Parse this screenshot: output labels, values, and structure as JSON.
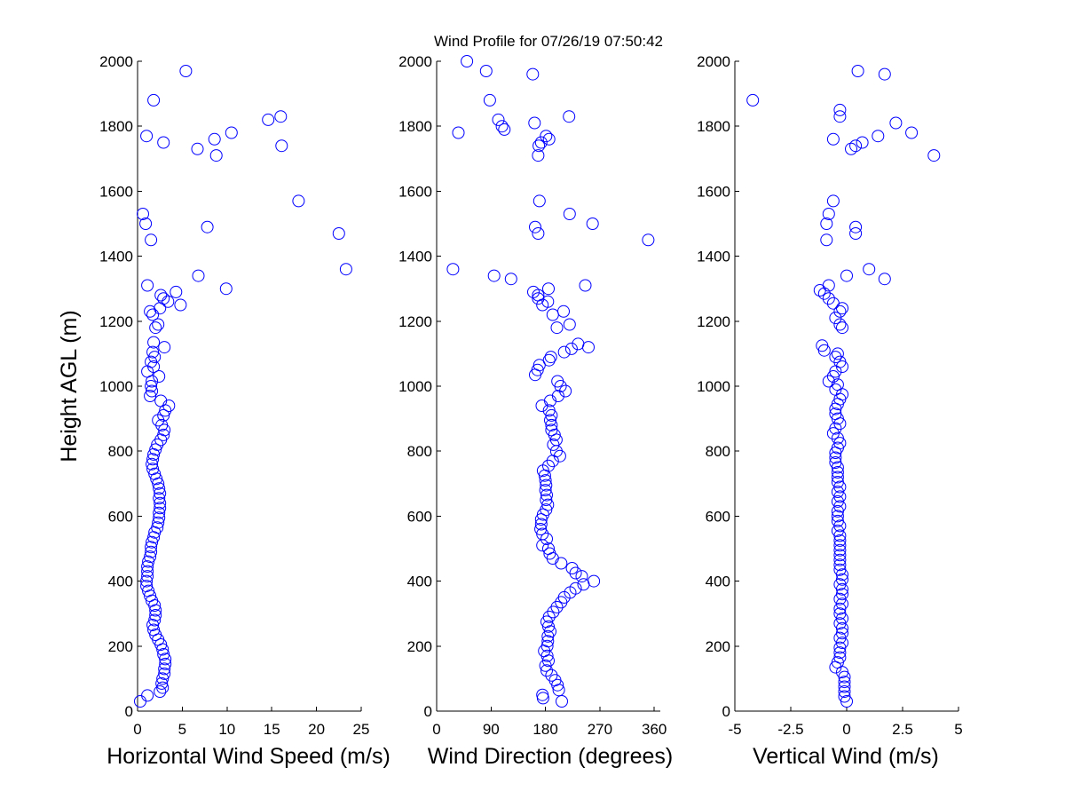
{
  "figure": {
    "title": "Wind Profile for  07/26/19 07:50:42",
    "marker_color": "#0000ff",
    "marker": "open-circle"
  },
  "chart_data": [
    {
      "type": "scatter",
      "xlabel": "Horizontal Wind Speed (m/s)",
      "ylabel": "Height AGL (m)",
      "xlim": [
        0,
        25
      ],
      "ylim": [
        0,
        2000
      ],
      "xticks": [
        0,
        5,
        10,
        15,
        20,
        25
      ],
      "yticks": [
        0,
        200,
        400,
        600,
        800,
        1000,
        1200,
        1400,
        1600,
        1800,
        2000
      ],
      "x_tick_labels": [
        "0",
        "5",
        "10",
        "15",
        "20",
        "25"
      ],
      "y_tick_labels": [
        "0",
        "200",
        "400",
        "600",
        "800",
        "1000",
        "1200",
        "1400",
        "1600",
        "1800",
        "2000"
      ],
      "points": [
        [
          0.3,
          30
        ],
        [
          1.1,
          48
        ],
        [
          2.5,
          60
        ],
        [
          2.8,
          72
        ],
        [
          2.7,
          85
        ],
        [
          2.8,
          100
        ],
        [
          3.0,
          115
        ],
        [
          3.0,
          130
        ],
        [
          3.1,
          145
        ],
        [
          3.1,
          160
        ],
        [
          2.9,
          175
        ],
        [
          2.8,
          190
        ],
        [
          2.6,
          205
        ],
        [
          2.3,
          220
        ],
        [
          2.0,
          235
        ],
        [
          1.8,
          250
        ],
        [
          1.7,
          265
        ],
        [
          1.9,
          280
        ],
        [
          2.0,
          295
        ],
        [
          2.0,
          310
        ],
        [
          1.9,
          325
        ],
        [
          1.6,
          340
        ],
        [
          1.4,
          355
        ],
        [
          1.2,
          370
        ],
        [
          1.0,
          385
        ],
        [
          1.0,
          400
        ],
        [
          1.1,
          415
        ],
        [
          1.1,
          430
        ],
        [
          1.1,
          445
        ],
        [
          1.2,
          460
        ],
        [
          1.4,
          475
        ],
        [
          1.5,
          490
        ],
        [
          1.5,
          505
        ],
        [
          1.6,
          520
        ],
        [
          1.8,
          535
        ],
        [
          1.9,
          550
        ],
        [
          2.2,
          565
        ],
        [
          2.3,
          580
        ],
        [
          2.4,
          595
        ],
        [
          2.4,
          610
        ],
        [
          2.5,
          625
        ],
        [
          2.5,
          640
        ],
        [
          2.4,
          655
        ],
        [
          2.5,
          670
        ],
        [
          2.4,
          685
        ],
        [
          2.3,
          700
        ],
        [
          2.1,
          715
        ],
        [
          1.9,
          730
        ],
        [
          1.7,
          745
        ],
        [
          1.6,
          760
        ],
        [
          1.7,
          775
        ],
        [
          1.8,
          790
        ],
        [
          2.0,
          805
        ],
        [
          2.2,
          820
        ],
        [
          2.6,
          835
        ],
        [
          2.9,
          850
        ],
        [
          3.0,
          865
        ],
        [
          2.7,
          880
        ],
        [
          2.3,
          895
        ],
        [
          2.9,
          910
        ],
        [
          3.1,
          925
        ],
        [
          3.5,
          940
        ],
        [
          2.6,
          955
        ],
        [
          1.4,
          970
        ],
        [
          1.6,
          985
        ],
        [
          1.5,
          1000
        ],
        [
          1.6,
          1015
        ],
        [
          2.4,
          1030
        ],
        [
          1.1,
          1045
        ],
        [
          1.8,
          1060
        ],
        [
          1.5,
          1075
        ],
        [
          1.9,
          1090
        ],
        [
          1.7,
          1105
        ],
        [
          3.0,
          1120
        ],
        [
          1.8,
          1135
        ],
        [
          2.0,
          1180
        ],
        [
          2.3,
          1190
        ],
        [
          1.7,
          1220
        ],
        [
          1.4,
          1230
        ],
        [
          2.5,
          1240
        ],
        [
          4.8,
          1250
        ],
        [
          3.4,
          1260
        ],
        [
          2.9,
          1270
        ],
        [
          2.6,
          1280
        ],
        [
          4.3,
          1290
        ],
        [
          9.9,
          1300
        ],
        [
          1.1,
          1310
        ],
        [
          6.8,
          1340
        ],
        [
          23.3,
          1360
        ],
        [
          1.5,
          1450
        ],
        [
          22.5,
          1470
        ],
        [
          7.8,
          1490
        ],
        [
          0.9,
          1500
        ],
        [
          0.6,
          1530
        ],
        [
          18.0,
          1570
        ],
        [
          8.8,
          1710
        ],
        [
          6.7,
          1730
        ],
        [
          16.1,
          1740
        ],
        [
          2.9,
          1750
        ],
        [
          8.6,
          1760
        ],
        [
          1.0,
          1770
        ],
        [
          10.5,
          1780
        ],
        [
          14.6,
          1820
        ],
        [
          16.0,
          1830
        ],
        [
          1.8,
          1880
        ],
        [
          5.4,
          1970
        ]
      ]
    },
    {
      "type": "scatter",
      "xlabel": "Wind Direction (degrees)",
      "ylabel": "",
      "xlim": [
        0,
        370
      ],
      "ylim": [
        0,
        2000
      ],
      "xticks": [
        0,
        90,
        180,
        270,
        360
      ],
      "yticks": [
        0,
        200,
        400,
        600,
        800,
        1000,
        1200,
        1400,
        1600,
        1800,
        2000
      ],
      "x_tick_labels": [
        "0",
        "90",
        "180",
        "270",
        "360"
      ],
      "y_tick_labels": [
        "0",
        "200",
        "400",
        "600",
        "800",
        "1000",
        "1200",
        "1400",
        "1600",
        "1800",
        "2000"
      ],
      "points": [
        [
          207,
          30
        ],
        [
          176,
          40
        ],
        [
          175,
          50
        ],
        [
          202,
          65
        ],
        [
          200,
          80
        ],
        [
          196,
          95
        ],
        [
          190,
          110
        ],
        [
          182,
          125
        ],
        [
          180,
          140
        ],
        [
          185,
          155
        ],
        [
          183,
          170
        ],
        [
          178,
          185
        ],
        [
          183,
          200
        ],
        [
          184,
          215
        ],
        [
          184,
          230
        ],
        [
          188,
          245
        ],
        [
          185,
          260
        ],
        [
          182,
          275
        ],
        [
          186,
          290
        ],
        [
          193,
          305
        ],
        [
          199,
          320
        ],
        [
          206,
          335
        ],
        [
          211,
          350
        ],
        [
          221,
          365
        ],
        [
          230,
          378
        ],
        [
          243,
          390
        ],
        [
          260,
          400
        ],
        [
          240,
          415
        ],
        [
          230,
          425
        ],
        [
          224,
          440
        ],
        [
          206,
          455
        ],
        [
          192,
          470
        ],
        [
          187,
          485
        ],
        [
          185,
          500
        ],
        [
          175,
          510
        ],
        [
          182,
          530
        ],
        [
          175,
          545
        ],
        [
          172,
          560
        ],
        [
          173,
          575
        ],
        [
          173,
          590
        ],
        [
          176,
          605
        ],
        [
          181,
          620
        ],
        [
          184,
          635
        ],
        [
          181,
          650
        ],
        [
          182,
          665
        ],
        [
          180,
          680
        ],
        [
          181,
          695
        ],
        [
          180,
          710
        ],
        [
          179,
          725
        ],
        [
          176,
          740
        ],
        [
          185,
          755
        ],
        [
          192,
          770
        ],
        [
          204,
          785
        ],
        [
          198,
          800
        ],
        [
          193,
          820
        ],
        [
          198,
          835
        ],
        [
          195,
          850
        ],
        [
          190,
          865
        ],
        [
          190,
          880
        ],
        [
          188,
          895
        ],
        [
          190,
          910
        ],
        [
          186,
          925
        ],
        [
          174,
          940
        ],
        [
          188,
          955
        ],
        [
          201,
          970
        ],
        [
          213,
          985
        ],
        [
          205,
          1000
        ],
        [
          200,
          1015
        ],
        [
          163,
          1035
        ],
        [
          167,
          1050
        ],
        [
          170,
          1065
        ],
        [
          186,
          1080
        ],
        [
          189,
          1090
        ],
        [
          211,
          1105
        ],
        [
          223,
          1115
        ],
        [
          234,
          1130
        ],
        [
          251,
          1120
        ],
        [
          199,
          1180
        ],
        [
          220,
          1190
        ],
        [
          192,
          1220
        ],
        [
          210,
          1230
        ],
        [
          175,
          1250
        ],
        [
          184,
          1260
        ],
        [
          168,
          1270
        ],
        [
          168,
          1280
        ],
        [
          160,
          1290
        ],
        [
          185,
          1300
        ],
        [
          246,
          1310
        ],
        [
          123,
          1330
        ],
        [
          95,
          1340
        ],
        [
          27,
          1360
        ],
        [
          350,
          1450
        ],
        [
          168,
          1470
        ],
        [
          163,
          1490
        ],
        [
          258,
          1500
        ],
        [
          220,
          1530
        ],
        [
          170,
          1570
        ],
        [
          168,
          1710
        ],
        [
          169,
          1740
        ],
        [
          173,
          1750
        ],
        [
          186,
          1760
        ],
        [
          181,
          1770
        ],
        [
          36,
          1780
        ],
        [
          112,
          1790
        ],
        [
          108,
          1800
        ],
        [
          162,
          1810
        ],
        [
          102,
          1820
        ],
        [
          219,
          1830
        ],
        [
          88,
          1880
        ],
        [
          159,
          1960
        ],
        [
          82,
          1970
        ],
        [
          50,
          2000
        ]
      ]
    },
    {
      "type": "scatter",
      "xlabel": "Vertical Wind (m/s)",
      "ylabel": "",
      "xlim": [
        -5,
        5
      ],
      "ylim": [
        0,
        2000
      ],
      "xticks": [
        -5,
        -2.5,
        0,
        2.5,
        5
      ],
      "yticks": [
        0,
        200,
        400,
        600,
        800,
        1000,
        1200,
        1400,
        1600,
        1800,
        2000
      ],
      "x_tick_labels": [
        "-5",
        "-2.5",
        "0",
        "2.5",
        "5"
      ],
      "y_tick_labels": [
        "0",
        "200",
        "400",
        "600",
        "800",
        "1000",
        "1200",
        "1400",
        "1600",
        "1800",
        "2000"
      ],
      "points": [
        [
          0.0,
          30
        ],
        [
          -0.1,
          45
        ],
        [
          -0.1,
          60
        ],
        [
          -0.1,
          75
        ],
        [
          -0.1,
          90
        ],
        [
          -0.1,
          105
        ],
        [
          -0.2,
          120
        ],
        [
          -0.5,
          135
        ],
        [
          -0.4,
          150
        ],
        [
          -0.3,
          165
        ],
        [
          -0.3,
          180
        ],
        [
          -0.3,
          195
        ],
        [
          -0.2,
          210
        ],
        [
          -0.3,
          225
        ],
        [
          -0.2,
          240
        ],
        [
          -0.2,
          255
        ],
        [
          -0.3,
          270
        ],
        [
          -0.2,
          285
        ],
        [
          -0.3,
          300
        ],
        [
          -0.3,
          315
        ],
        [
          -0.2,
          330
        ],
        [
          -0.3,
          345
        ],
        [
          -0.2,
          360
        ],
        [
          -0.2,
          375
        ],
        [
          -0.3,
          390
        ],
        [
          -0.2,
          405
        ],
        [
          -0.2,
          420
        ],
        [
          -0.3,
          435
        ],
        [
          -0.3,
          450
        ],
        [
          -0.3,
          465
        ],
        [
          -0.3,
          480
        ],
        [
          -0.3,
          495
        ],
        [
          -0.3,
          510
        ],
        [
          -0.3,
          525
        ],
        [
          -0.3,
          540
        ],
        [
          -0.4,
          555
        ],
        [
          -0.3,
          570
        ],
        [
          -0.4,
          585
        ],
        [
          -0.4,
          600
        ],
        [
          -0.4,
          615
        ],
        [
          -0.3,
          630
        ],
        [
          -0.4,
          645
        ],
        [
          -0.3,
          660
        ],
        [
          -0.4,
          675
        ],
        [
          -0.3,
          690
        ],
        [
          -0.4,
          705
        ],
        [
          -0.4,
          720
        ],
        [
          -0.4,
          735
        ],
        [
          -0.4,
          750
        ],
        [
          -0.5,
          765
        ],
        [
          -0.5,
          780
        ],
        [
          -0.5,
          795
        ],
        [
          -0.4,
          810
        ],
        [
          -0.3,
          825
        ],
        [
          -0.4,
          840
        ],
        [
          -0.6,
          855
        ],
        [
          -0.5,
          870
        ],
        [
          -0.3,
          885
        ],
        [
          -0.4,
          900
        ],
        [
          -0.5,
          915
        ],
        [
          -0.5,
          930
        ],
        [
          -0.4,
          945
        ],
        [
          -0.3,
          960
        ],
        [
          -0.2,
          975
        ],
        [
          -0.5,
          990
        ],
        [
          -0.4,
          1005
        ],
        [
          -0.8,
          1015
        ],
        [
          -0.6,
          1030
        ],
        [
          -0.5,
          1045
        ],
        [
          -0.2,
          1060
        ],
        [
          -0.3,
          1075
        ],
        [
          -0.5,
          1090
        ],
        [
          -0.4,
          1100
        ],
        [
          -1.0,
          1110
        ],
        [
          -1.1,
          1125
        ],
        [
          -0.2,
          1180
        ],
        [
          -0.3,
          1190
        ],
        [
          -0.5,
          1210
        ],
        [
          -0.3,
          1230
        ],
        [
          -0.2,
          1240
        ],
        [
          -0.6,
          1255
        ],
        [
          -0.8,
          1270
        ],
        [
          -1.0,
          1285
        ],
        [
          -1.2,
          1295
        ],
        [
          -0.8,
          1310
        ],
        [
          1.7,
          1330
        ],
        [
          0.0,
          1340
        ],
        [
          1.0,
          1360
        ],
        [
          -0.9,
          1450
        ],
        [
          0.4,
          1470
        ],
        [
          0.4,
          1490
        ],
        [
          -0.9,
          1500
        ],
        [
          -0.8,
          1530
        ],
        [
          -0.6,
          1570
        ],
        [
          3.9,
          1710
        ],
        [
          0.2,
          1730
        ],
        [
          0.4,
          1740
        ],
        [
          0.7,
          1750
        ],
        [
          -0.6,
          1760
        ],
        [
          1.4,
          1770
        ],
        [
          2.9,
          1780
        ],
        [
          2.2,
          1810
        ],
        [
          -0.3,
          1830
        ],
        [
          -0.3,
          1850
        ],
        [
          -4.2,
          1880
        ],
        [
          1.7,
          1960
        ],
        [
          0.5,
          1970
        ]
      ]
    }
  ]
}
